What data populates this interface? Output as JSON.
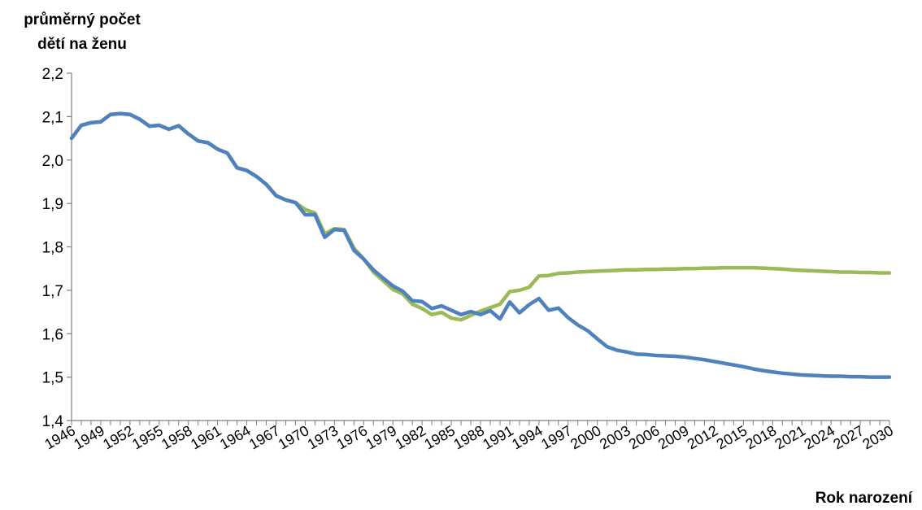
{
  "chart_data": {
    "type": "line",
    "ylabel_line1": "průměrný počet",
    "ylabel_line2": "dětí na ženu",
    "xlabel": "Rok narození",
    "ylim": [
      1.4,
      2.2
    ],
    "yticks": [
      "1,4",
      "1,5",
      "1,6",
      "1,7",
      "1,8",
      "1,9",
      "2,0",
      "2,1",
      "2,2"
    ],
    "xlim": [
      1946,
      2030
    ],
    "xtick_labels": [
      "1946",
      "1949",
      "1952",
      "1955",
      "1958",
      "1961",
      "1964",
      "1967",
      "1970",
      "1973",
      "1976",
      "1979",
      "1982",
      "1985",
      "1988",
      "1991",
      "1994",
      "1997",
      "2000",
      "2003",
      "2006",
      "2009",
      "2012",
      "2015",
      "2018",
      "2021",
      "2024",
      "2027",
      "2030"
    ],
    "series": [
      {
        "color": "#9bbb59",
        "points": [
          [
            1946,
            2.05
          ],
          [
            1947,
            2.08
          ],
          [
            1948,
            2.086
          ],
          [
            1949,
            2.088
          ],
          [
            1950,
            2.105
          ],
          [
            1951,
            2.107
          ],
          [
            1952,
            2.105
          ],
          [
            1953,
            2.094
          ],
          [
            1954,
            2.078
          ],
          [
            1955,
            2.08
          ],
          [
            1956,
            2.071
          ],
          [
            1957,
            2.079
          ],
          [
            1958,
            2.06
          ],
          [
            1959,
            2.044
          ],
          [
            1960,
            2.04
          ],
          [
            1961,
            2.025
          ],
          [
            1962,
            2.016
          ],
          [
            1963,
            1.982
          ],
          [
            1964,
            1.976
          ],
          [
            1965,
            1.962
          ],
          [
            1966,
            1.944
          ],
          [
            1967,
            1.918
          ],
          [
            1968,
            1.908
          ],
          [
            1969,
            1.902
          ],
          [
            1970,
            1.886
          ],
          [
            1971,
            1.878
          ],
          [
            1972,
            1.83
          ],
          [
            1973,
            1.842
          ],
          [
            1974,
            1.84
          ],
          [
            1975,
            1.797
          ],
          [
            1976,
            1.772
          ],
          [
            1977,
            1.742
          ],
          [
            1978,
            1.722
          ],
          [
            1979,
            1.702
          ],
          [
            1980,
            1.692
          ],
          [
            1981,
            1.668
          ],
          [
            1982,
            1.658
          ],
          [
            1983,
            1.644
          ],
          [
            1984,
            1.649
          ],
          [
            1985,
            1.636
          ],
          [
            1986,
            1.632
          ],
          [
            1987,
            1.642
          ],
          [
            1988,
            1.652
          ],
          [
            1989,
            1.66
          ],
          [
            1990,
            1.668
          ],
          [
            1991,
            1.697
          ],
          [
            1992,
            1.7
          ],
          [
            1993,
            1.707
          ],
          [
            1994,
            1.733
          ],
          [
            1995,
            1.734
          ],
          [
            1996,
            1.739
          ],
          [
            1997,
            1.74
          ],
          [
            1998,
            1.742
          ],
          [
            1999,
            1.743
          ],
          [
            2000,
            1.744
          ],
          [
            2001,
            1.745
          ],
          [
            2002,
            1.746
          ],
          [
            2003,
            1.747
          ],
          [
            2004,
            1.747
          ],
          [
            2005,
            1.748
          ],
          [
            2006,
            1.748
          ],
          [
            2007,
            1.749
          ],
          [
            2008,
            1.749
          ],
          [
            2009,
            1.75
          ],
          [
            2010,
            1.75
          ],
          [
            2011,
            1.751
          ],
          [
            2012,
            1.751
          ],
          [
            2013,
            1.752
          ],
          [
            2014,
            1.752
          ],
          [
            2015,
            1.752
          ],
          [
            2016,
            1.752
          ],
          [
            2017,
            1.751
          ],
          [
            2018,
            1.75
          ],
          [
            2019,
            1.749
          ],
          [
            2020,
            1.747
          ],
          [
            2021,
            1.746
          ],
          [
            2022,
            1.745
          ],
          [
            2023,
            1.744
          ],
          [
            2024,
            1.743
          ],
          [
            2025,
            1.742
          ],
          [
            2026,
            1.742
          ],
          [
            2027,
            1.741
          ],
          [
            2028,
            1.741
          ],
          [
            2029,
            1.74
          ],
          [
            2030,
            1.74
          ]
        ]
      },
      {
        "color": "#4f81bd",
        "points": [
          [
            1946,
            2.05
          ],
          [
            1947,
            2.08
          ],
          [
            1948,
            2.086
          ],
          [
            1949,
            2.088
          ],
          [
            1950,
            2.105
          ],
          [
            1951,
            2.107
          ],
          [
            1952,
            2.105
          ],
          [
            1953,
            2.094
          ],
          [
            1954,
            2.078
          ],
          [
            1955,
            2.08
          ],
          [
            1956,
            2.071
          ],
          [
            1957,
            2.079
          ],
          [
            1958,
            2.06
          ],
          [
            1959,
            2.044
          ],
          [
            1960,
            2.04
          ],
          [
            1961,
            2.025
          ],
          [
            1962,
            2.016
          ],
          [
            1963,
            1.982
          ],
          [
            1964,
            1.976
          ],
          [
            1965,
            1.962
          ],
          [
            1966,
            1.944
          ],
          [
            1967,
            1.918
          ],
          [
            1968,
            1.908
          ],
          [
            1969,
            1.902
          ],
          [
            1970,
            1.874
          ],
          [
            1971,
            1.874
          ],
          [
            1972,
            1.822
          ],
          [
            1973,
            1.84
          ],
          [
            1974,
            1.838
          ],
          [
            1975,
            1.792
          ],
          [
            1976,
            1.772
          ],
          [
            1977,
            1.747
          ],
          [
            1978,
            1.728
          ],
          [
            1979,
            1.71
          ],
          [
            1980,
            1.698
          ],
          [
            1981,
            1.676
          ],
          [
            1982,
            1.674
          ],
          [
            1983,
            1.658
          ],
          [
            1984,
            1.664
          ],
          [
            1985,
            1.654
          ],
          [
            1986,
            1.644
          ],
          [
            1987,
            1.651
          ],
          [
            1988,
            1.644
          ],
          [
            1989,
            1.653
          ],
          [
            1990,
            1.634
          ],
          [
            1991,
            1.673
          ],
          [
            1992,
            1.648
          ],
          [
            1993,
            1.667
          ],
          [
            1994,
            1.681
          ],
          [
            1995,
            1.654
          ],
          [
            1996,
            1.659
          ],
          [
            1997,
            1.637
          ],
          [
            1998,
            1.62
          ],
          [
            1999,
            1.607
          ],
          [
            2000,
            1.588
          ],
          [
            2001,
            1.57
          ],
          [
            2002,
            1.562
          ],
          [
            2003,
            1.558
          ],
          [
            2004,
            1.553
          ],
          [
            2005,
            1.552
          ],
          [
            2006,
            1.55
          ],
          [
            2007,
            1.549
          ],
          [
            2008,
            1.548
          ],
          [
            2009,
            1.546
          ],
          [
            2010,
            1.543
          ],
          [
            2011,
            1.54
          ],
          [
            2012,
            1.536
          ],
          [
            2013,
            1.532
          ],
          [
            2014,
            1.528
          ],
          [
            2015,
            1.524
          ],
          [
            2016,
            1.519
          ],
          [
            2017,
            1.515
          ],
          [
            2018,
            1.512
          ],
          [
            2019,
            1.509
          ],
          [
            2020,
            1.507
          ],
          [
            2021,
            1.505
          ],
          [
            2022,
            1.504
          ],
          [
            2023,
            1.503
          ],
          [
            2024,
            1.502
          ],
          [
            2025,
            1.502
          ],
          [
            2026,
            1.501
          ],
          [
            2027,
            1.501
          ],
          [
            2028,
            1.5
          ],
          [
            2029,
            1.5
          ],
          [
            2030,
            1.5
          ]
        ]
      }
    ]
  }
}
